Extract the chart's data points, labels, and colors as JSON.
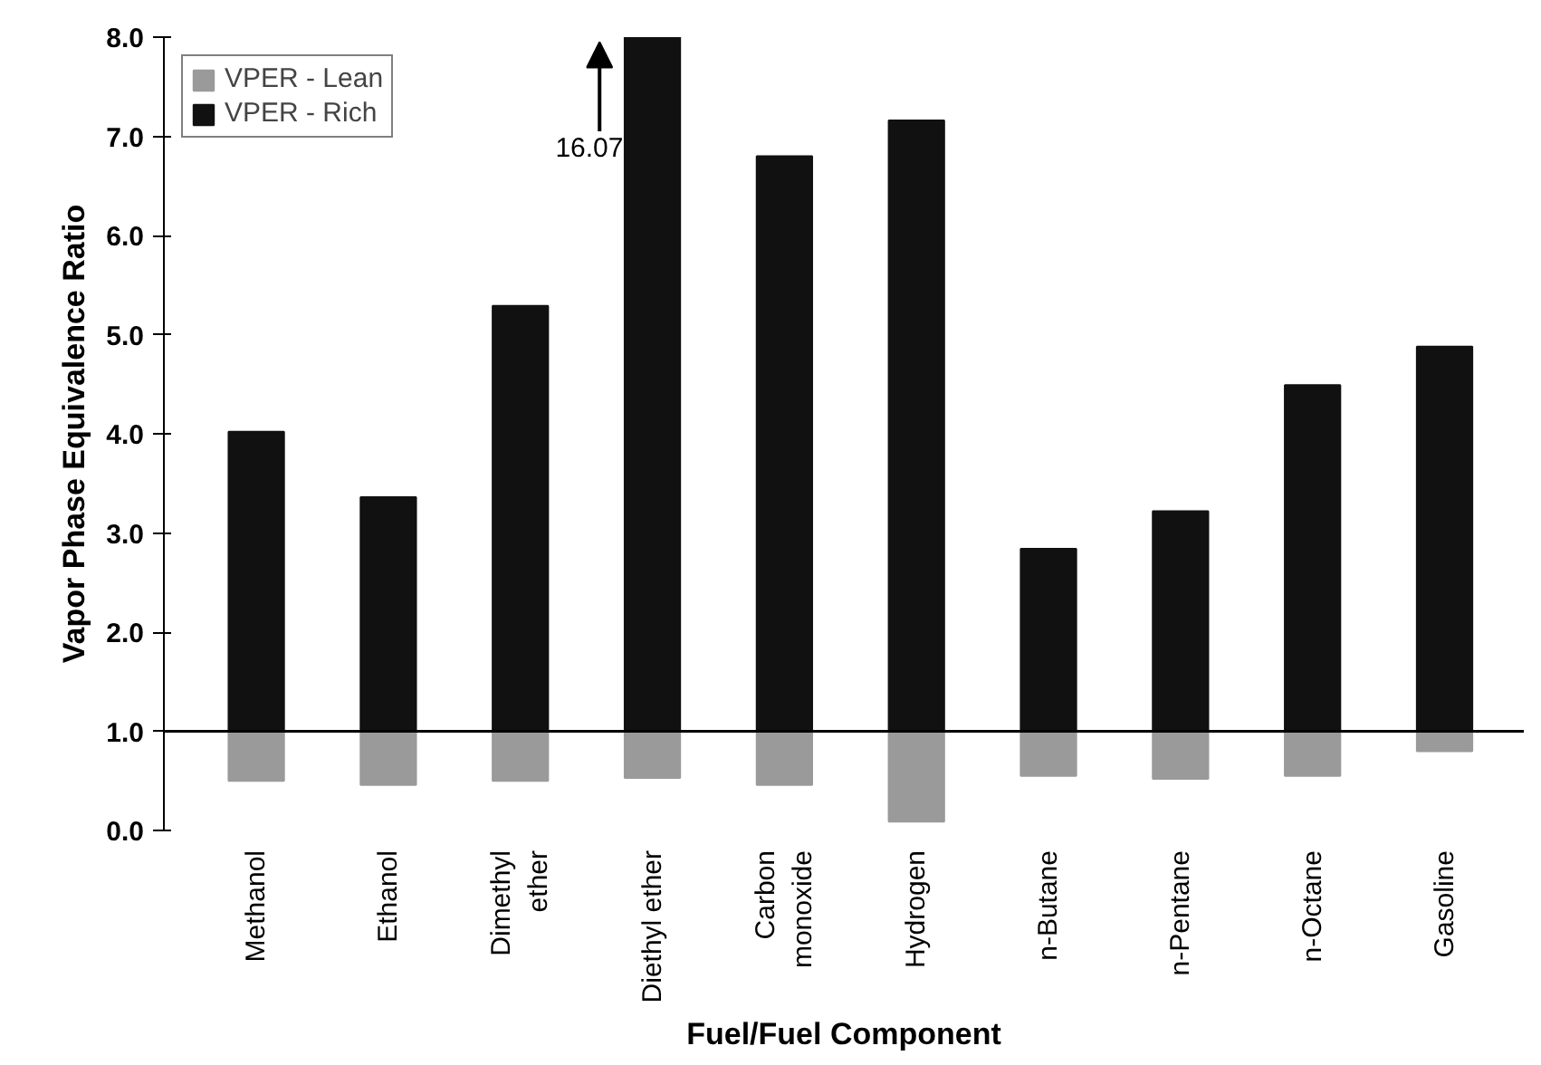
{
  "chart_data": {
    "type": "bar",
    "xlabel": "Fuel/Fuel Component",
    "ylabel": "Vapor Phase Equivalence Ratio",
    "categories": [
      "Methanol",
      "Ethanol",
      "Dimethyl\nether",
      "Diethyl ether",
      "Carbon\nmonoxide",
      "Hydrogen",
      "n-Butane",
      "n-Pentane",
      "n-Octane",
      "Gasoline"
    ],
    "series": [
      {
        "name": "VPER - Lean",
        "color": "#9a9a9a",
        "base": [
          0.5,
          0.46,
          0.5,
          0.53,
          0.46,
          0.09,
          0.55,
          0.52,
          0.55,
          0.8
        ],
        "values": [
          0.5,
          0.54,
          0.5,
          0.47,
          0.54,
          0.91,
          0.45,
          0.48,
          0.45,
          0.2
        ]
      },
      {
        "name": "VPER - Rich",
        "color": "#111111",
        "base": [
          1,
          1,
          1,
          1,
          1,
          1,
          1,
          1,
          1,
          1
        ],
        "values": [
          3.02,
          2.36,
          4.29,
          7.0,
          5.8,
          6.16,
          1.84,
          2.22,
          3.49,
          3.88
        ]
      }
    ],
    "ylim": [
      0,
      8
    ],
    "yticks": [
      {
        "value": 0,
        "label": "0.0"
      },
      {
        "value": 1,
        "label": "1.0"
      },
      {
        "value": 2,
        "label": "2.0"
      },
      {
        "value": 3,
        "label": "3.0"
      },
      {
        "value": 4,
        "label": "4.0"
      },
      {
        "value": 5,
        "label": "5.0"
      },
      {
        "value": 6,
        "label": "6.0"
      },
      {
        "value": 7,
        "label": "7.0"
      },
      {
        "value": 8,
        "label": "8.0"
      }
    ],
    "ref_lines": [
      {
        "axis": "y",
        "value": 1,
        "color": "#000000"
      }
    ],
    "annotations": [
      "16.07"
    ],
    "legend": "top left",
    "grid": false
  }
}
